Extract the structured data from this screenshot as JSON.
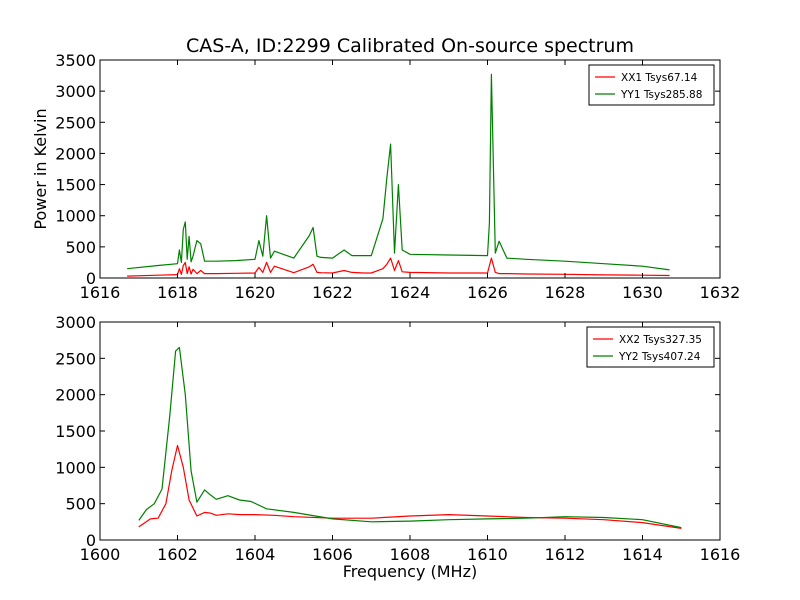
{
  "chart_data": [
    {
      "type": "line",
      "title": "CAS-A, ID:2299 Calibrated On-source spectrum",
      "xlabel": "",
      "ylabel": "Power in Kelvin",
      "xlim": [
        1616,
        1632
      ],
      "ylim": [
        0,
        3500
      ],
      "xticks": [
        "1616",
        "1618",
        "1620",
        "1622",
        "1624",
        "1626",
        "1628",
        "1630",
        "1632"
      ],
      "yticks": [
        "0",
        "500",
        "1000",
        "1500",
        "2000",
        "2500",
        "3000",
        "3500"
      ],
      "legend_position": "top-right",
      "grid": false,
      "series": [
        {
          "name": "XX1 Tsys67.14",
          "color": "#ff0000",
          "x": [
            1616.7,
            1617.5,
            1618.0,
            1618.05,
            1618.1,
            1618.15,
            1618.2,
            1618.25,
            1618.3,
            1618.35,
            1618.4,
            1618.5,
            1618.6,
            1618.7,
            1619.0,
            1619.5,
            1620.0,
            1620.1,
            1620.2,
            1620.3,
            1620.4,
            1620.5,
            1621.0,
            1621.4,
            1621.5,
            1621.6,
            1621.7,
            1622.0,
            1622.3,
            1622.5,
            1622.8,
            1623.0,
            1623.3,
            1623.4,
            1623.5,
            1623.6,
            1623.7,
            1623.8,
            1624.0,
            1625.0,
            1626.0,
            1626.1,
            1626.2,
            1626.3,
            1626.5,
            1627.0,
            1628.0,
            1629.0,
            1630.0,
            1630.7
          ],
          "y": [
            30,
            45,
            55,
            150,
            60,
            200,
            250,
            70,
            180,
            65,
            140,
            70,
            120,
            70,
            70,
            75,
            80,
            170,
            90,
            250,
            90,
            190,
            85,
            180,
            220,
            90,
            85,
            80,
            120,
            90,
            80,
            80,
            150,
            220,
            320,
            120,
            280,
            100,
            90,
            80,
            80,
            320,
            90,
            70,
            70,
            65,
            60,
            50,
            45,
            40
          ]
        },
        {
          "name": "YY1 Tsys285.88",
          "color": "#008000",
          "x": [
            1616.7,
            1617.5,
            1618.0,
            1618.05,
            1618.1,
            1618.15,
            1618.2,
            1618.25,
            1618.3,
            1618.35,
            1618.4,
            1618.5,
            1618.6,
            1618.7,
            1619.0,
            1619.5,
            1620.0,
            1620.1,
            1620.2,
            1620.3,
            1620.4,
            1620.5,
            1621.0,
            1621.4,
            1621.5,
            1621.6,
            1621.7,
            1622.0,
            1622.3,
            1622.5,
            1622.8,
            1623.0,
            1623.3,
            1623.4,
            1623.5,
            1623.6,
            1623.7,
            1623.8,
            1624.0,
            1625.0,
            1626.0,
            1626.05,
            1626.1,
            1626.2,
            1626.3,
            1626.5,
            1627.0,
            1628.0,
            1629.0,
            1630.0,
            1630.7
          ],
          "y": [
            150,
            200,
            230,
            450,
            250,
            780,
            900,
            300,
            670,
            260,
            350,
            600,
            550,
            270,
            270,
            280,
            300,
            600,
            350,
            1000,
            320,
            430,
            320,
            680,
            810,
            350,
            330,
            320,
            450,
            360,
            360,
            360,
            950,
            1600,
            2150,
            400,
            1500,
            450,
            380,
            370,
            360,
            880,
            3270,
            400,
            590,
            320,
            300,
            270,
            230,
            190,
            130
          ]
        }
      ]
    },
    {
      "type": "line",
      "title": "",
      "xlabel": "Frequency (MHz)",
      "ylabel": "",
      "xlim": [
        1600,
        1616
      ],
      "ylim": [
        0,
        3000
      ],
      "xticks": [
        "1600",
        "1602",
        "1604",
        "1606",
        "1608",
        "1610",
        "1612",
        "1614",
        "1616"
      ],
      "yticks": [
        "0",
        "500",
        "1000",
        "1500",
        "2000",
        "2500",
        "3000"
      ],
      "legend_position": "top-right",
      "grid": false,
      "series": [
        {
          "name": "XX2 Tsys327.35",
          "color": "#ff0000",
          "x": [
            1601.0,
            1601.3,
            1601.5,
            1601.7,
            1601.85,
            1602.0,
            1602.15,
            1602.3,
            1602.5,
            1602.7,
            1602.85,
            1603.0,
            1603.3,
            1603.6,
            1604.0,
            1604.5,
            1605.0,
            1606.0,
            1607.0,
            1608.0,
            1609.0,
            1610.0,
            1611.0,
            1612.0,
            1613.0,
            1614.0,
            1615.0
          ],
          "y": [
            180,
            290,
            300,
            500,
            950,
            1300,
            1000,
            550,
            330,
            380,
            370,
            340,
            360,
            350,
            350,
            340,
            320,
            300,
            300,
            330,
            350,
            330,
            310,
            300,
            280,
            240,
            160
          ]
        },
        {
          "name": "YY2 Tsys407.24",
          "color": "#008000",
          "x": [
            1601.0,
            1601.2,
            1601.4,
            1601.6,
            1601.8,
            1601.95,
            1602.05,
            1602.2,
            1602.35,
            1602.5,
            1602.7,
            1602.85,
            1603.0,
            1603.3,
            1603.6,
            1603.9,
            1604.3,
            1605.0,
            1606.0,
            1607.0,
            1608.0,
            1609.0,
            1610.0,
            1611.0,
            1612.0,
            1613.0,
            1614.0,
            1615.0
          ],
          "y": [
            270,
            420,
            500,
            700,
            1700,
            2600,
            2650,
            2000,
            950,
            520,
            690,
            620,
            560,
            610,
            550,
            530,
            430,
            380,
            290,
            250,
            260,
            280,
            290,
            300,
            320,
            310,
            280,
            170
          ]
        }
      ]
    }
  ]
}
